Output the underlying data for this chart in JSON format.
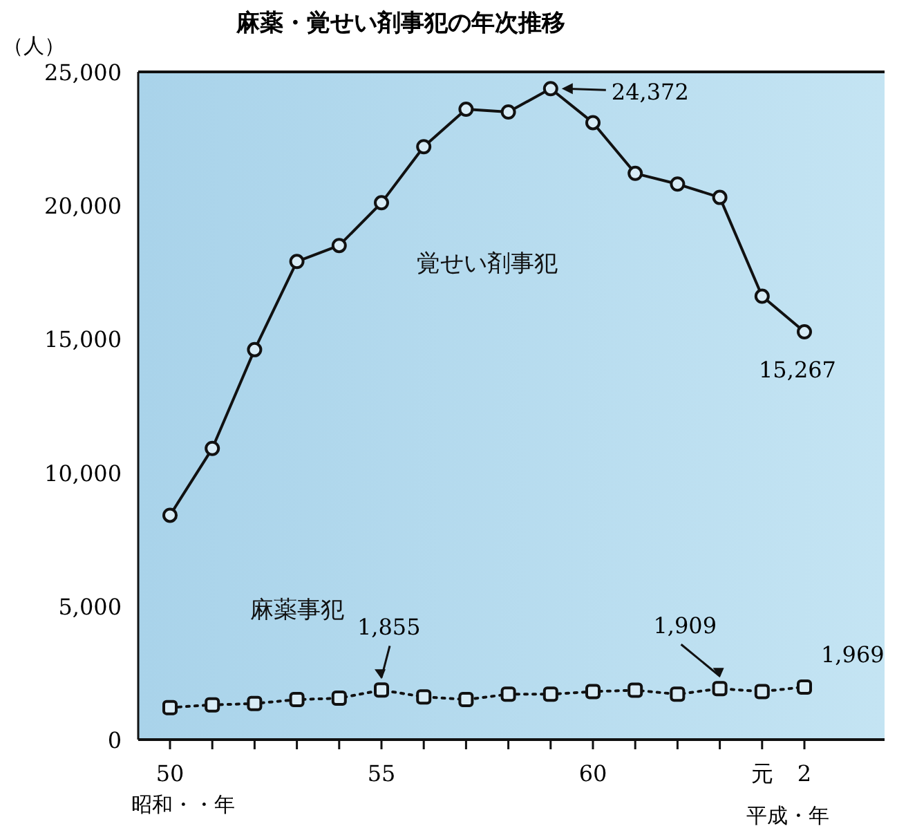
{
  "chart_data": {
    "type": "line",
    "title": "麻薬・覚せい剤事犯の年次推移",
    "ylabel": "（人）",
    "xlabel": "昭和・・年",
    "annotations": [
      "平成・年"
    ],
    "categories": [
      "50",
      null,
      null,
      null,
      null,
      "55",
      null,
      null,
      null,
      null,
      "60",
      null,
      null,
      null,
      "元",
      "2"
    ],
    "ylim": [
      0,
      25000
    ],
    "yticks": [
      0,
      {
        "value": 5000,
        "label": "5,000"
      },
      {
        "value": 10000,
        "label": "10,000"
      },
      {
        "value": 15000,
        "label": "15,000"
      },
      {
        "value": 20000,
        "label": "20,000"
      },
      {
        "value": 25000,
        "label": "25,000"
      }
    ],
    "series": [
      {
        "name": "覚せい剤事犯",
        "color": "#111111",
        "marker": "circle",
        "line_style": "solid",
        "values": [
          8400,
          10900,
          14600,
          17900,
          18500,
          20100,
          22200,
          23600,
          23500,
          24372,
          23100,
          21200,
          20800,
          20300,
          16600,
          15267
        ],
        "value_labels": [
          null,
          null,
          null,
          null,
          null,
          null,
          null,
          null,
          null,
          "24,372",
          null,
          null,
          null,
          null,
          null,
          "15,267"
        ]
      },
      {
        "name": "麻薬事犯",
        "color": "#111111",
        "marker": "square",
        "line_style": "dotted",
        "values": [
          1200,
          1300,
          1350,
          1500,
          1550,
          1855,
          1600,
          1500,
          1700,
          1700,
          1800,
          1850,
          1700,
          1909,
          1800,
          1969
        ],
        "value_labels": [
          null,
          null,
          null,
          null,
          null,
          "1,855",
          null,
          null,
          null,
          null,
          null,
          null,
          null,
          "1,909",
          null,
          "1,969"
        ]
      }
    ]
  }
}
